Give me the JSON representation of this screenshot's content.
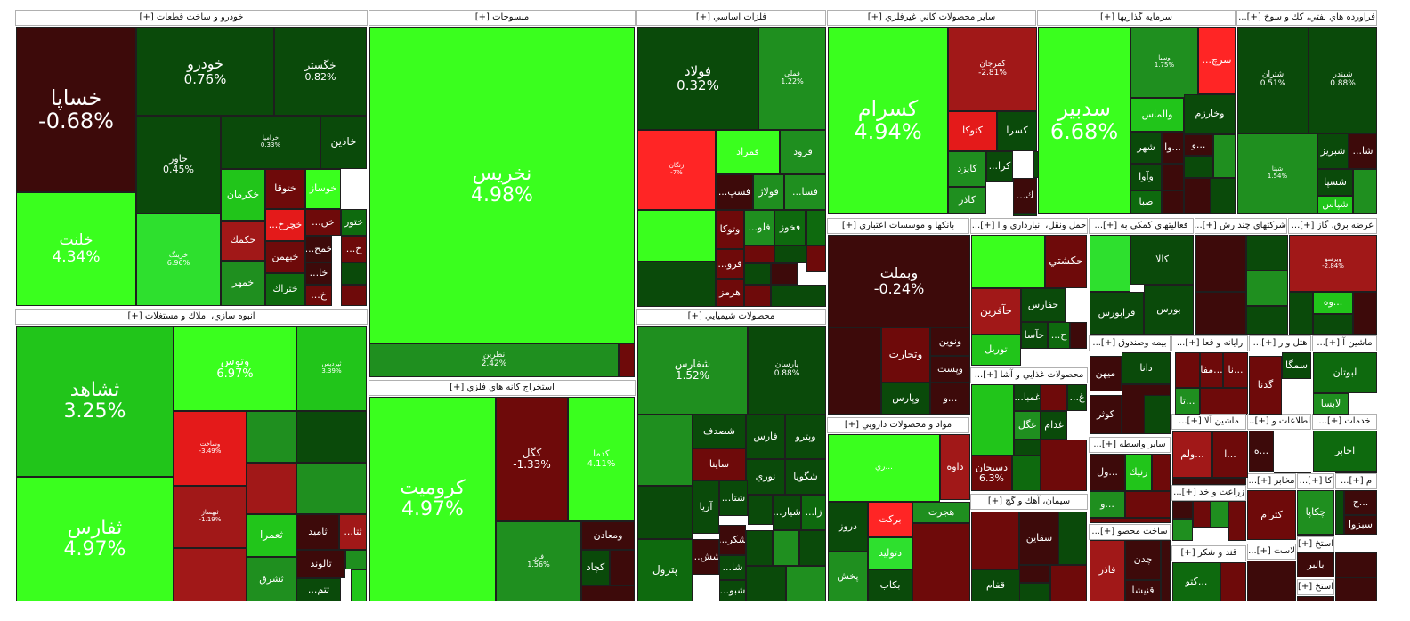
{
  "palette": {
    "dg": "#0a4a0a",
    "g2": "#0e6a0e",
    "g3": "#1f8f1f",
    "lg": "#21c51a",
    "bg": "#2ee02e",
    "br": "#3aff1e",
    "dr": "#3d0a0a",
    "r2": "#6e0a0a",
    "mr": "#a11818",
    "rr": "#e41a1a",
    "rb": "#ff2525"
  },
  "sectors": [
    {
      "title": "خودرو و ساخت قطعات [+]"
    },
    {
      "title": "منسوجات [+]"
    },
    {
      "title": "فلزات اساسي [+]"
    },
    {
      "title": "ساير محصولات كاني غيرفلزي [+]"
    },
    {
      "title": "سرمايه گذاريها [+]"
    },
    {
      "title": "فراورده هاي نفتي، كك و سوخ [+]..."
    },
    {
      "title": "انبوه سازي، املاك و مستغلات [+]"
    },
    {
      "title": "استخراج كانه هاي فلزي [+]"
    },
    {
      "title": "محصولات شيميايي [+]"
    },
    {
      "title": "بانكها و موسسات اعتباري [+]"
    },
    {
      "title": "حمل ونقل، انبارداري و ا [+]..."
    },
    {
      "title": "فعاليتهاي كمكي به [+]..."
    },
    {
      "title": "شركتهاي چند رش [+]..."
    },
    {
      "title": "عرضه برق، گاز [+]..."
    },
    {
      "title": "بيمه وصندوق [+]..."
    },
    {
      "title": "رايانه و فعا [+]..."
    },
    {
      "title": "هتل و ر [+]..."
    },
    {
      "title": "ماشين آ [+]..."
    },
    {
      "title": "محصولات غذايي و آشا [+]..."
    },
    {
      "title": "مواد و محصولات دارويي [+]"
    },
    {
      "title": "ماشين آلا [+]..."
    },
    {
      "title": "اطلاعات و [+]..."
    },
    {
      "title": "خدمات [+]..."
    },
    {
      "title": "ساير واسطه [+]..."
    },
    {
      "title": "مخابر [+]..."
    },
    {
      "title": "كا [+]..."
    },
    {
      "title": "م [+]..."
    },
    {
      "title": "زراعت و خد [+]..."
    },
    {
      "title": "سيمان، آهك و گچ [+]"
    },
    {
      "title": "ساخت محصو [+]..."
    },
    {
      "title": "قند و شكر [+]"
    },
    {
      "title": "لاست [+]..."
    },
    {
      "title": "استخ [+]..."
    },
    {
      "title": "استخ [+]..."
    }
  ],
  "stocks": [
    {
      "sym": "خساپا",
      "pct": "-0.68%"
    },
    {
      "sym": "خلنت",
      "pct": "4.34%"
    },
    {
      "sym": "خودرو",
      "pct": "0.76%"
    },
    {
      "sym": "خگستر",
      "pct": "0.82%"
    },
    {
      "sym": "خاور",
      "pct": "0.45%"
    },
    {
      "sym": "خرامیا",
      "pct": "0.33%"
    },
    {
      "sym": "خاذين"
    },
    {
      "sym": "خرینگ",
      "pct": "6.96%"
    },
    {
      "sym": "خكرمان"
    },
    {
      "sym": "ختوقا"
    },
    {
      "sym": "خوساز"
    },
    {
      "sym": "خكمك"
    },
    {
      "sym": "خچرخ..."
    },
    {
      "sym": "خن..."
    },
    {
      "sym": "ختور"
    },
    {
      "sym": "خبهمن"
    },
    {
      "sym": "خمح..."
    },
    {
      "sym": "خ..."
    },
    {
      "sym": "خمهر"
    },
    {
      "sym": "ختراك"
    },
    {
      "sym": "خا..."
    },
    {
      "sym": "خ..."
    },
    {
      "sym": "نخريس",
      "pct": "4.98%"
    },
    {
      "sym": "نطرين",
      "pct": "2.42%"
    },
    {
      "sym": "فولاد",
      "pct": "0.32%"
    },
    {
      "sym": "فملي",
      "pct": "1.22%"
    },
    {
      "sym": "زنگان",
      "pct": "-7%"
    },
    {
      "sym": "فمراد"
    },
    {
      "sym": "فرود"
    },
    {
      "sym": "فسپ..."
    },
    {
      "sym": "فولاژ"
    },
    {
      "sym": "فسا..."
    },
    {
      "sym": "وتوكا"
    },
    {
      "sym": "فلو..."
    },
    {
      "sym": "فخوز"
    },
    {
      "sym": "فرو..."
    },
    {
      "sym": "هرمز"
    },
    {
      "sym": "كسرام",
      "pct": "4.94%"
    },
    {
      "sym": "كمرجان",
      "pct": "-2.81%"
    },
    {
      "sym": "كتوكا"
    },
    {
      "sym": "كسرا"
    },
    {
      "sym": "كرا..."
    },
    {
      "sym": "كايزد"
    },
    {
      "sym": "ك..."
    },
    {
      "sym": "كاذر"
    },
    {
      "sym": "سدبير",
      "pct": "6.68%"
    },
    {
      "sym": "وسبا",
      "pct": "1.75%"
    },
    {
      "sym": "سرچ..."
    },
    {
      "sym": "والماس"
    },
    {
      "sym": "وخارزم"
    },
    {
      "sym": "شهر"
    },
    {
      "sym": "...وا"
    },
    {
      "sym": "...و"
    },
    {
      "sym": "وآوا"
    },
    {
      "sym": "صبا"
    },
    {
      "sym": "شتران",
      "pct": "0.51%"
    },
    {
      "sym": "شبندر",
      "pct": "0.88%"
    },
    {
      "sym": "شپنا",
      "pct": "1.54%"
    },
    {
      "sym": "شا..."
    },
    {
      "sym": "شبريز"
    },
    {
      "sym": "شسپا"
    },
    {
      "sym": "شپاس"
    },
    {
      "sym": "ثشاهد",
      "pct": "3.25%"
    },
    {
      "sym": "وتوس",
      "pct": "6.97%"
    },
    {
      "sym": "ثپردیس",
      "pct": "3.39%"
    },
    {
      "sym": "وساخت",
      "pct": "-3.49%"
    },
    {
      "sym": "ثفارس",
      "pct": "4.97%"
    },
    {
      "sym": "ثبهساز",
      "pct": "-1.19%"
    },
    {
      "sym": "ثعمرا"
    },
    {
      "sym": "ثاميد"
    },
    {
      "sym": "ثتا..."
    },
    {
      "sym": "ثالوند"
    },
    {
      "sym": "ثشرق"
    },
    {
      "sym": "ثتم..."
    },
    {
      "sym": "كروميت",
      "pct": "4.97%"
    },
    {
      "sym": "كگل",
      "pct": "-1.33%"
    },
    {
      "sym": "كدما",
      "pct": "4.11%"
    },
    {
      "sym": "فزر",
      "pct": "1.56%"
    },
    {
      "sym": "ومعادن"
    },
    {
      "sym": "كچاد"
    },
    {
      "sym": "شفارس",
      "pct": "1.52%"
    },
    {
      "sym": "پارسان",
      "pct": "0.88%"
    },
    {
      "sym": "شصدف"
    },
    {
      "sym": "فارس"
    },
    {
      "sym": "وپترو"
    },
    {
      "sym": "ساينا"
    },
    {
      "sym": "نوري"
    },
    {
      "sym": "شگويا"
    },
    {
      "sym": "آريا"
    },
    {
      "sym": "شتا..."
    },
    {
      "sym": "شيار..."
    },
    {
      "sym": "زا..."
    },
    {
      "sym": "شكر..."
    },
    {
      "sym": "پترول"
    },
    {
      "sym": "شش..."
    },
    {
      "sym": "شا..."
    },
    {
      "sym": "شبو..."
    },
    {
      "sym": "وبملت",
      "pct": "-0.24%"
    },
    {
      "sym": "وتجارت"
    },
    {
      "sym": "ونوين"
    },
    {
      "sym": "وپست"
    },
    {
      "sym": "وپارس"
    },
    {
      "sym": "...و"
    },
    {
      "sym": "حكشتي"
    },
    {
      "sym": "حفارس"
    },
    {
      "sym": "حآفرين"
    },
    {
      "sym": "حآسا"
    },
    {
      "sym": "ح..."
    },
    {
      "sym": "توريل"
    },
    {
      "sym": "كالا"
    },
    {
      "sym": "بورس"
    },
    {
      "sym": "فرابورس"
    },
    {
      "sym": "وپرسو",
      "pct": "-2.84%"
    },
    {
      "sym": "...وه"
    },
    {
      "sym": "دانا"
    },
    {
      "sym": "ميهن"
    },
    {
      "sym": "كوثر"
    },
    {
      "sym": "...مفا"
    },
    {
      "sym": "...نا"
    },
    {
      "sym": "...تا"
    },
    {
      "sym": "سمگا"
    },
    {
      "sym": "گدنا"
    },
    {
      "sym": "لبوتان"
    },
    {
      "sym": "لابسا"
    },
    {
      "sym": "غمبا..."
    },
    {
      "sym": "غ..."
    },
    {
      "sym": "غگل"
    },
    {
      "sym": "غدام"
    },
    {
      "sym": "دسبحان",
      "pct": "6.3%"
    },
    {
      "sym": "...ري"
    },
    {
      "sym": "داوه"
    },
    {
      "sym": "بركت"
    },
    {
      "sym": "هجرت"
    },
    {
      "sym": "دروز"
    },
    {
      "sym": "دتوليد"
    },
    {
      "sym": "پخش"
    },
    {
      "sym": "بكاب"
    },
    {
      "sym": "...ولم"
    },
    {
      "sym": "...ول"
    },
    {
      "sym": "...و"
    },
    {
      "sym": "رنيك"
    },
    {
      "sym": "اخابر"
    },
    {
      "sym": "كترام"
    },
    {
      "sym": "چكاپا"
    },
    {
      "sym": "...چ"
    },
    {
      "sym": "سبزوا"
    },
    {
      "sym": "سقاين"
    },
    {
      "sym": "قفام"
    },
    {
      "sym": "فاذر"
    },
    {
      "sym": "چدن"
    },
    {
      "sym": "قنيشا"
    },
    {
      "sym": "...كتو"
    },
    {
      "sym": "بالبر"
    },
    {
      "sym": "...ا"
    },
    {
      "sym": "...ه"
    }
  ]
}
